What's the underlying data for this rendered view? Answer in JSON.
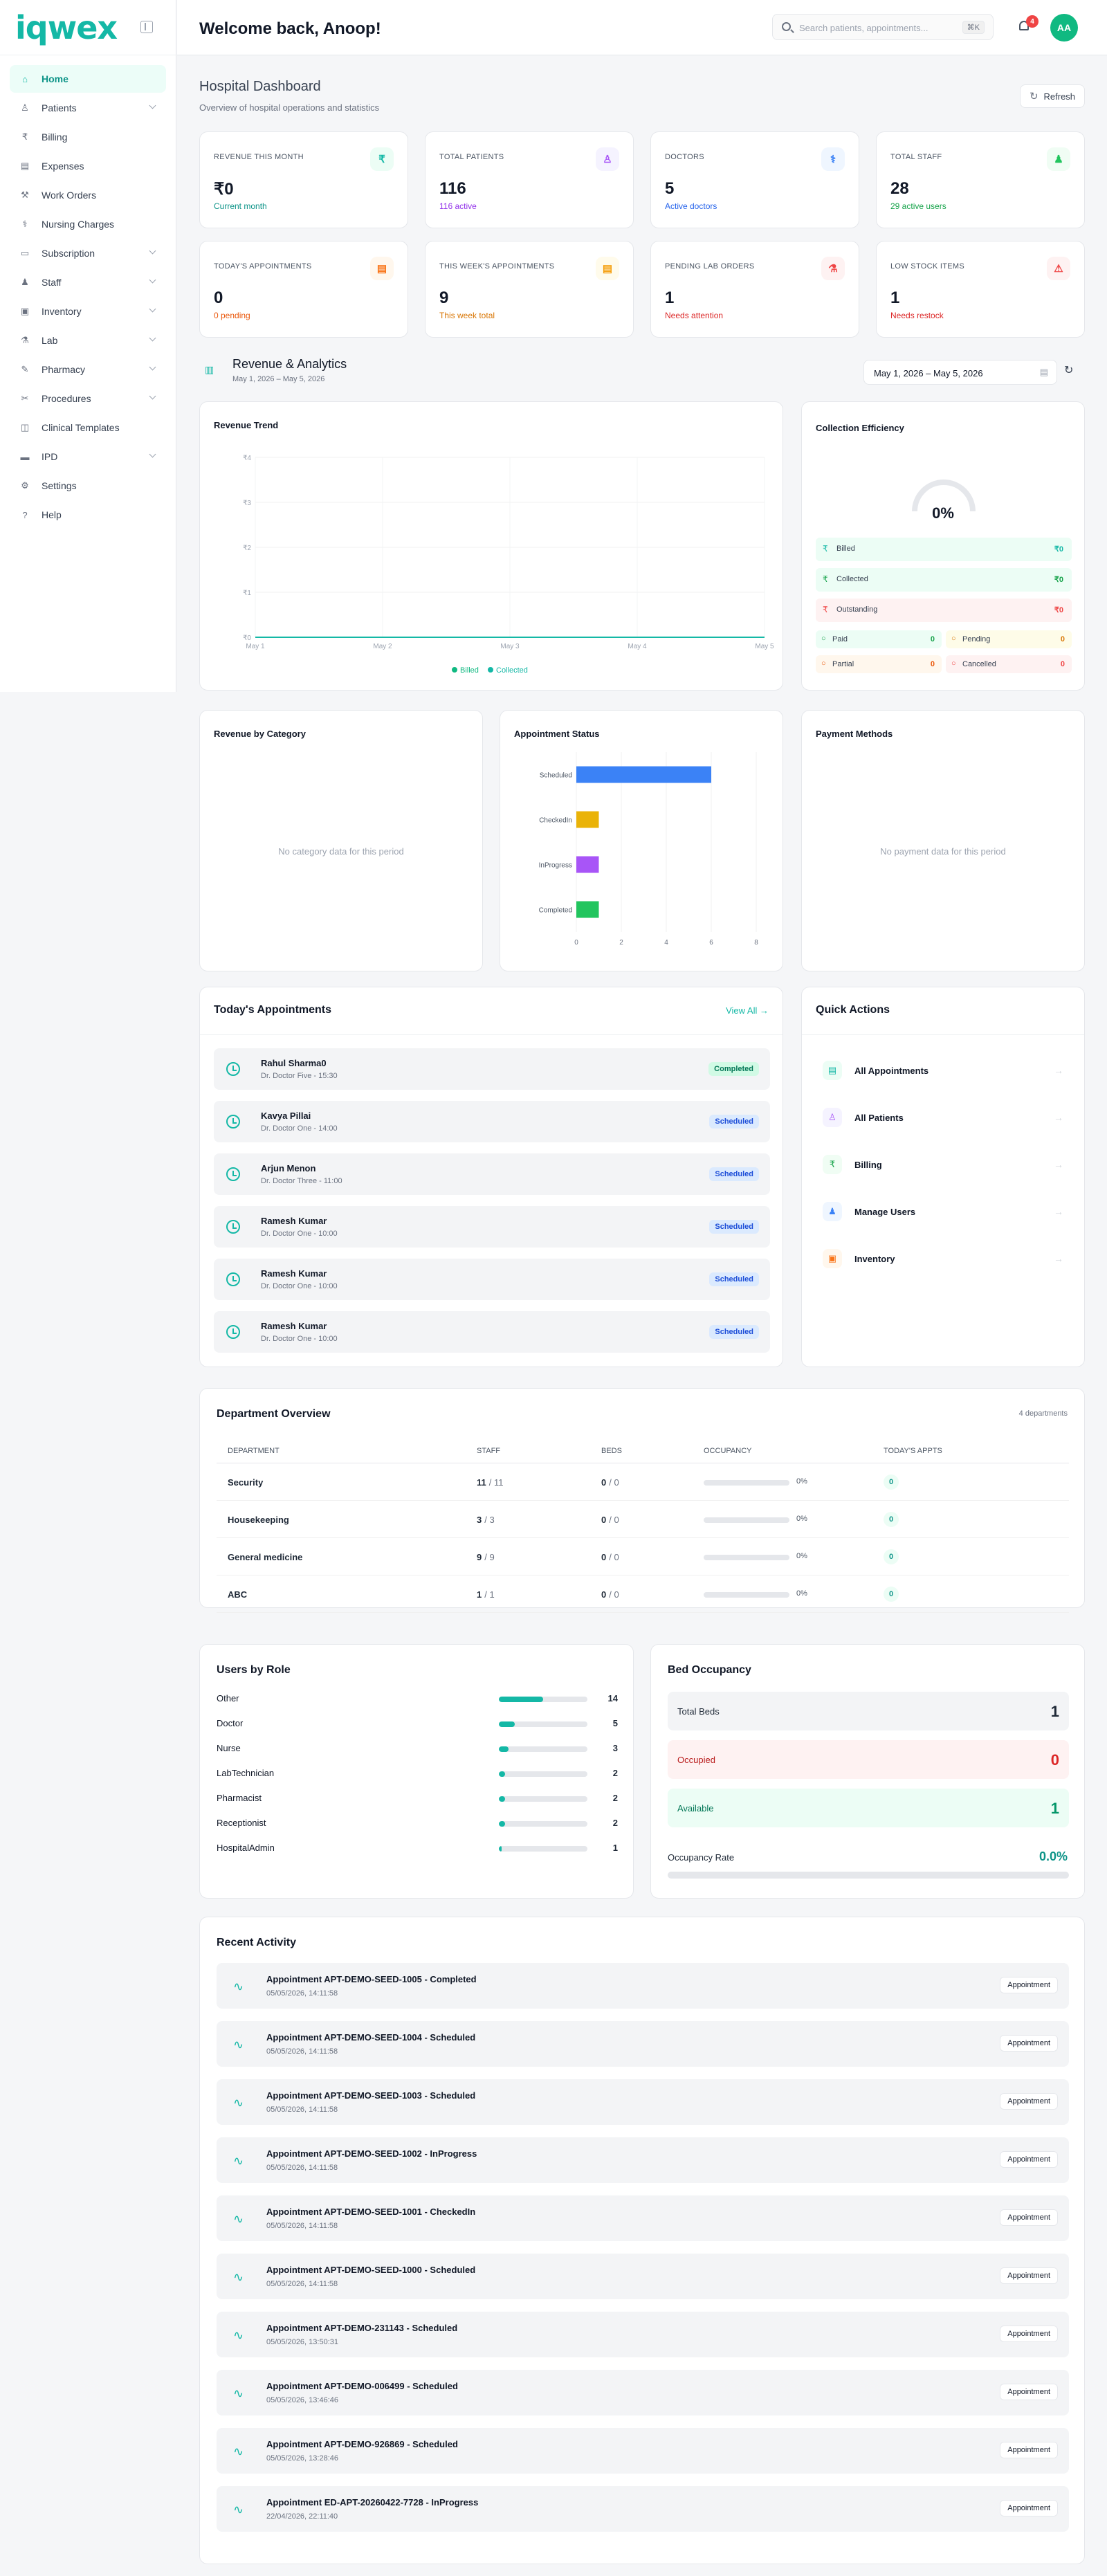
{
  "app": {
    "brand": "iqwex",
    "welcome": "Welcome back, Anoop!",
    "avatar": "AA",
    "notif_count": "4"
  },
  "search": {
    "placeholder": "Search patients, appointments...",
    "shortcut": "⌘K"
  },
  "sidebar": {
    "items": [
      {
        "label": "Home",
        "icon": "home-icon",
        "active": true,
        "chev": false
      },
      {
        "label": "Patients",
        "icon": "users-icon",
        "chev": true
      },
      {
        "label": "Billing",
        "icon": "rupee-icon",
        "chev": false
      },
      {
        "label": "Expenses",
        "icon": "receipt-icon",
        "chev": false
      },
      {
        "label": "Work Orders",
        "icon": "wrench-icon",
        "chev": false
      },
      {
        "label": "Nursing Charges",
        "icon": "stethoscope-icon",
        "chev": false
      },
      {
        "label": "Subscription",
        "icon": "card-icon",
        "chev": true
      },
      {
        "label": "Staff",
        "icon": "staff-icon",
        "chev": true
      },
      {
        "label": "Inventory",
        "icon": "box-icon",
        "chev": true
      },
      {
        "label": "Lab",
        "icon": "flask-icon",
        "chev": true
      },
      {
        "label": "Pharmacy",
        "icon": "pill-icon",
        "chev": true
      },
      {
        "label": "Procedures",
        "icon": "scalpel-icon",
        "chev": true
      },
      {
        "label": "Clinical Templates",
        "icon": "template-icon",
        "chev": false
      },
      {
        "label": "IPD",
        "icon": "bed-icon",
        "chev": true
      },
      {
        "label": "Settings",
        "icon": "gear-icon",
        "chev": false
      },
      {
        "label": "Help",
        "icon": "help-icon",
        "chev": false
      }
    ]
  },
  "page": {
    "title": "Hospital Dashboard",
    "subtitle": "Overview of hospital operations and statistics",
    "refresh": "Refresh"
  },
  "stats": [
    {
      "label": "Revenue This Month",
      "value": "₹0",
      "sub": "Current month",
      "icon": "₹",
      "color": "#14b8a6",
      "bg": "#ecfdf5",
      "subcolor": "#0d9488"
    },
    {
      "label": "Total Patients",
      "value": "116",
      "sub": "116 active",
      "icon": "♙",
      "color": "#a855f7",
      "bg": "#f5f3ff",
      "subcolor": "#9333ea"
    },
    {
      "label": "Doctors",
      "value": "5",
      "sub": "Active doctors",
      "icon": "⚕",
      "color": "#3b82f6",
      "bg": "#eff6ff",
      "subcolor": "#2563eb"
    },
    {
      "label": "Total Staff",
      "value": "28",
      "sub": "29 active users",
      "icon": "♟",
      "color": "#22c55e",
      "bg": "#f0fdf4",
      "subcolor": "#16a34a"
    },
    {
      "label": "Today's Appointments",
      "value": "0",
      "sub": "0 pending",
      "icon": "▤",
      "color": "#f97316",
      "bg": "#fff7ed",
      "subcolor": "#ea580c"
    },
    {
      "label": "This Week's Appointments",
      "value": "9",
      "sub": "This week total",
      "icon": "▤",
      "color": "#f59e0b",
      "bg": "#fffbeb",
      "subcolor": "#d97706"
    },
    {
      "label": "Pending Lab Orders",
      "value": "1",
      "sub": "Needs attention",
      "icon": "⚗",
      "color": "#ef4444",
      "bg": "#fef2f2",
      "subcolor": "#dc2626"
    },
    {
      "label": "Low Stock Items",
      "value": "1",
      "sub": "Needs restock",
      "icon": "⚠",
      "color": "#ef4444",
      "bg": "#fef2f2",
      "subcolor": "#dc2626"
    }
  ],
  "analytics": {
    "title": "Revenue & Analytics",
    "range": "May 1, 2026 – May 5, 2026",
    "picker": "May 1, 2026 – May 5, 2026"
  },
  "revenue_trend": {
    "title": "Revenue Trend",
    "yticks": [
      "₹4",
      "₹3",
      "₹2",
      "₹1",
      "₹0"
    ],
    "xticks": [
      "May 1",
      "May 2",
      "May 3",
      "May 4",
      "May 5"
    ],
    "legend": [
      "Billed",
      "Collected"
    ]
  },
  "efficiency": {
    "title": "Collection Efficiency",
    "pct": "0%",
    "rows": [
      {
        "label": "Billed",
        "val": "₹0",
        "bg": "#ecfdf5",
        "color": "#14b8a6"
      },
      {
        "label": "Collected",
        "val": "₹0",
        "bg": "#ecfdf5",
        "color": "#16a34a"
      },
      {
        "label": "Outstanding",
        "val": "₹0",
        "bg": "#fef2f2",
        "color": "#ef4444"
      }
    ],
    "chips": [
      {
        "label": "Paid",
        "val": "0",
        "bg": "#ecfdf5",
        "color": "#16a34a"
      },
      {
        "label": "Pending",
        "val": "0",
        "bg": "#fefce8",
        "color": "#d97706"
      },
      {
        "label": "Partial",
        "val": "0",
        "bg": "#fff7ed",
        "color": "#ea580c"
      },
      {
        "label": "Cancelled",
        "val": "0",
        "bg": "#fef2f2",
        "color": "#ef4444"
      }
    ]
  },
  "category": {
    "title": "Revenue by Category",
    "empty": "No category data for this period"
  },
  "payment": {
    "title": "Payment Methods",
    "empty": "No payment data for this period"
  },
  "chart_data": {
    "type": "bar",
    "title": "Appointment Status",
    "categories": [
      "Scheduled",
      "CheckedIn",
      "InProgress",
      "Completed"
    ],
    "values": [
      6,
      1,
      1,
      1
    ],
    "xlim": [
      0,
      8
    ],
    "xticks": [
      "0",
      "2",
      "4",
      "6",
      "8"
    ],
    "colors": [
      "#3b82f6",
      "#eab308",
      "#a855f7",
      "#22c55e"
    ]
  },
  "today": {
    "title": "Today's Appointments",
    "view_all": "View All →",
    "items": [
      {
        "name": "Rahul Sharma0",
        "doctor": "Dr. Doctor Five - 15:30",
        "status": "Completed"
      },
      {
        "name": "Kavya Pillai",
        "doctor": "Dr. Doctor One - 14:00",
        "status": "Scheduled"
      },
      {
        "name": "Arjun Menon",
        "doctor": "Dr. Doctor Three - 11:00",
        "status": "Scheduled"
      },
      {
        "name": "Ramesh Kumar",
        "doctor": "Dr. Doctor One - 10:00",
        "status": "Scheduled"
      },
      {
        "name": "Ramesh Kumar",
        "doctor": "Dr. Doctor One - 10:00",
        "status": "Scheduled"
      },
      {
        "name": "Ramesh Kumar",
        "doctor": "Dr. Doctor One - 10:00",
        "status": "Scheduled"
      }
    ]
  },
  "quick": {
    "title": "Quick Actions",
    "items": [
      {
        "label": "All Appointments",
        "icon": "▤",
        "color": "#14b8a6",
        "bg": "#ecfdf5"
      },
      {
        "label": "All Patients",
        "icon": "♙",
        "color": "#a855f7",
        "bg": "#f5f3ff"
      },
      {
        "label": "Billing",
        "icon": "₹",
        "color": "#16a34a",
        "bg": "#f0fdf4"
      },
      {
        "label": "Manage Users",
        "icon": "♟",
        "color": "#3b82f6",
        "bg": "#eff6ff"
      },
      {
        "label": "Inventory",
        "icon": "▣",
        "color": "#f97316",
        "bg": "#fff7ed"
      }
    ]
  },
  "departments": {
    "title": "Department Overview",
    "count": "4 departments",
    "headers": [
      "Department",
      "Staff",
      "Beds",
      "Occupancy",
      "Today's Appts"
    ],
    "rows": [
      {
        "name": "Security",
        "staff": "11",
        "staff_total": "/ 11",
        "beds": "0",
        "beds_total": "/ 0",
        "occ": "0%",
        "appts": "0"
      },
      {
        "name": "Housekeeping",
        "staff": "3",
        "staff_total": "/ 3",
        "beds": "0",
        "beds_total": "/ 0",
        "occ": "0%",
        "appts": "0"
      },
      {
        "name": "General medicine",
        "staff": "9",
        "staff_total": "/ 9",
        "beds": "0",
        "beds_total": "/ 0",
        "occ": "0%",
        "appts": "0"
      },
      {
        "name": "ABC",
        "staff": "1",
        "staff_total": "/ 1",
        "beds": "0",
        "beds_total": "/ 0",
        "occ": "0%",
        "appts": "0"
      }
    ]
  },
  "roles": {
    "title": "Users by Role",
    "items": [
      {
        "name": "Other",
        "value": "14",
        "fill": 0.5
      },
      {
        "name": "Doctor",
        "value": "5",
        "fill": 0.18
      },
      {
        "name": "Nurse",
        "value": "3",
        "fill": 0.11
      },
      {
        "name": "LabTechnician",
        "value": "2",
        "fill": 0.07
      },
      {
        "name": "Pharmacist",
        "value": "2",
        "fill": 0.07
      },
      {
        "name": "Receptionist",
        "value": "2",
        "fill": 0.07
      },
      {
        "name": "HospitalAdmin",
        "value": "1",
        "fill": 0.035
      }
    ]
  },
  "beds": {
    "title": "Bed Occupancy",
    "total_label": "Total Beds",
    "total": "1",
    "occupied_label": "Occupied",
    "occupied": "0",
    "available_label": "Available",
    "available": "1",
    "rate_label": "Occupancy Rate",
    "rate": "0.0%"
  },
  "activity": {
    "title": "Recent Activity",
    "items": [
      {
        "title": "Appointment APT-DEMO-SEED-1005 - Completed",
        "date": "05/05/2026, 14:11:58",
        "badge": "Appointment"
      },
      {
        "title": "Appointment APT-DEMO-SEED-1004 - Scheduled",
        "date": "05/05/2026, 14:11:58",
        "badge": "Appointment"
      },
      {
        "title": "Appointment APT-DEMO-SEED-1003 - Scheduled",
        "date": "05/05/2026, 14:11:58",
        "badge": "Appointment"
      },
      {
        "title": "Appointment APT-DEMO-SEED-1002 - InProgress",
        "date": "05/05/2026, 14:11:58",
        "badge": "Appointment"
      },
      {
        "title": "Appointment APT-DEMO-SEED-1001 - CheckedIn",
        "date": "05/05/2026, 14:11:58",
        "badge": "Appointment"
      },
      {
        "title": "Appointment APT-DEMO-SEED-1000 - Scheduled",
        "date": "05/05/2026, 14:11:58",
        "badge": "Appointment"
      },
      {
        "title": "Appointment APT-DEMO-231143 - Scheduled",
        "date": "05/05/2026, 13:50:31",
        "badge": "Appointment"
      },
      {
        "title": "Appointment APT-DEMO-006499 - Scheduled",
        "date": "05/05/2026, 13:46:46",
        "badge": "Appointment"
      },
      {
        "title": "Appointment APT-DEMO-926869 - Scheduled",
        "date": "05/05/2026, 13:28:46",
        "badge": "Appointment"
      },
      {
        "title": "Appointment ED-APT-20260422-7728 - InProgress",
        "date": "22/04/2026, 22:11:40",
        "badge": "Appointment"
      }
    ]
  }
}
